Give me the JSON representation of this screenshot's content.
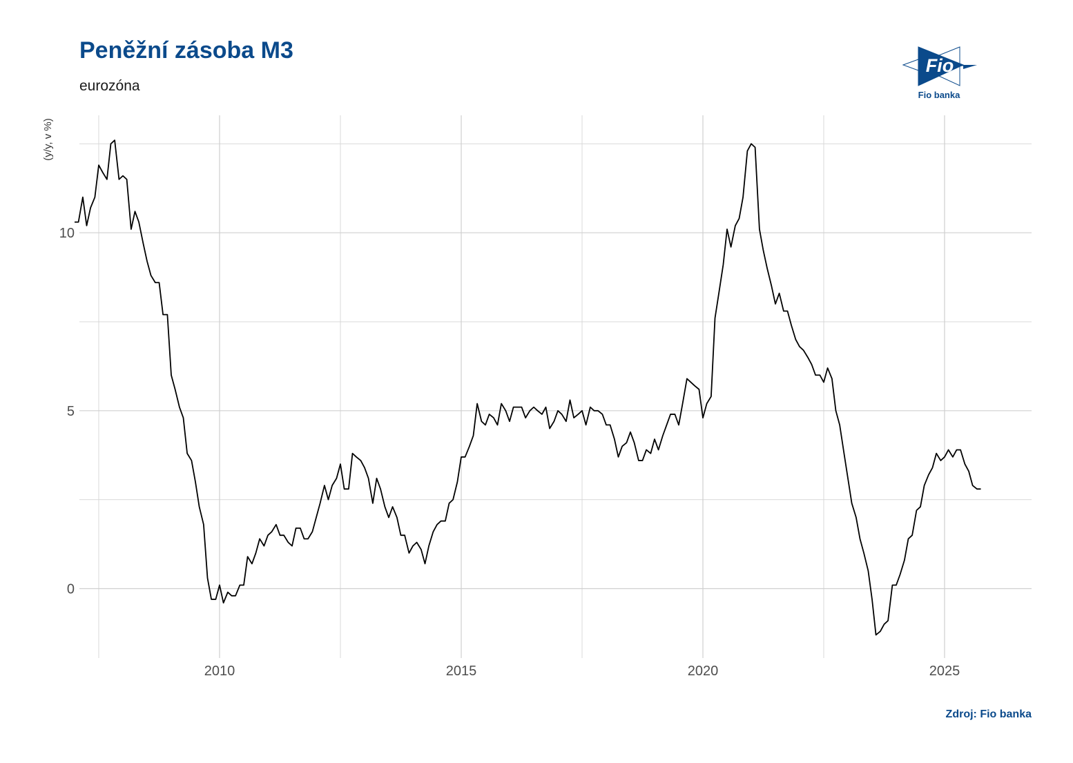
{
  "header": {
    "title": "Peněžní zásoba M3",
    "subtitle": "eurozóna"
  },
  "logo": {
    "icon": "fio-banka-logo",
    "mark_text": "Fio",
    "caption": "Fio banka",
    "color": "#0b4a8b"
  },
  "footer": {
    "source": "Zdroj: Fio banka"
  },
  "chart_data": {
    "type": "line",
    "title": "Peněžní zásoba M3",
    "subtitle": "eurozóna",
    "xlabel": "",
    "ylabel": "(y/y, v %)",
    "xlim": [
      2007.1,
      2026.8
    ],
    "ylim": [
      -1.95,
      13.3
    ],
    "x_ticks": [
      2010,
      2015,
      2020,
      2025
    ],
    "y_ticks": [
      0,
      5,
      10
    ],
    "grid": true,
    "line_color": "#000000",
    "series": [
      {
        "name": "",
        "points": [
          [
            2007.0,
            10.3
          ],
          [
            2007.08,
            10.3
          ],
          [
            2007.17,
            11.0
          ],
          [
            2007.25,
            10.2
          ],
          [
            2007.33,
            10.7
          ],
          [
            2007.42,
            11.0
          ],
          [
            2007.5,
            11.9
          ],
          [
            2007.58,
            11.7
          ],
          [
            2007.67,
            11.5
          ],
          [
            2007.75,
            12.5
          ],
          [
            2007.83,
            12.6
          ],
          [
            2007.92,
            11.5
          ],
          [
            2008.0,
            11.6
          ],
          [
            2008.08,
            11.5
          ],
          [
            2008.17,
            10.1
          ],
          [
            2008.25,
            10.6
          ],
          [
            2008.33,
            10.3
          ],
          [
            2008.42,
            9.7
          ],
          [
            2008.5,
            9.2
          ],
          [
            2008.58,
            8.8
          ],
          [
            2008.67,
            8.6
          ],
          [
            2008.75,
            8.6
          ],
          [
            2008.83,
            7.7
          ],
          [
            2008.92,
            7.7
          ],
          [
            2009.0,
            6.0
          ],
          [
            2009.08,
            5.6
          ],
          [
            2009.17,
            5.1
          ],
          [
            2009.25,
            4.8
          ],
          [
            2009.33,
            3.8
          ],
          [
            2009.42,
            3.6
          ],
          [
            2009.5,
            3.0
          ],
          [
            2009.58,
            2.3
          ],
          [
            2009.67,
            1.8
          ],
          [
            2009.75,
            0.3
          ],
          [
            2009.83,
            -0.3
          ],
          [
            2009.92,
            -0.3
          ],
          [
            2010.0,
            0.1
          ],
          [
            2010.08,
            -0.4
          ],
          [
            2010.17,
            -0.1
          ],
          [
            2010.25,
            -0.2
          ],
          [
            2010.33,
            -0.2
          ],
          [
            2010.42,
            0.1
          ],
          [
            2010.5,
            0.1
          ],
          [
            2010.58,
            0.9
          ],
          [
            2010.67,
            0.7
          ],
          [
            2010.75,
            1.0
          ],
          [
            2010.83,
            1.4
          ],
          [
            2010.92,
            1.2
          ],
          [
            2011.0,
            1.5
          ],
          [
            2011.08,
            1.6
          ],
          [
            2011.17,
            1.8
          ],
          [
            2011.25,
            1.5
          ],
          [
            2011.33,
            1.5
          ],
          [
            2011.42,
            1.3
          ],
          [
            2011.5,
            1.2
          ],
          [
            2011.58,
            1.7
          ],
          [
            2011.67,
            1.7
          ],
          [
            2011.75,
            1.4
          ],
          [
            2011.83,
            1.4
          ],
          [
            2011.92,
            1.6
          ],
          [
            2012.0,
            2.0
          ],
          [
            2012.08,
            2.4
          ],
          [
            2012.17,
            2.9
          ],
          [
            2012.25,
            2.5
          ],
          [
            2012.33,
            2.9
          ],
          [
            2012.42,
            3.1
          ],
          [
            2012.5,
            3.5
          ],
          [
            2012.58,
            2.8
          ],
          [
            2012.67,
            2.8
          ],
          [
            2012.75,
            3.8
          ],
          [
            2012.83,
            3.7
          ],
          [
            2012.92,
            3.6
          ],
          [
            2013.0,
            3.4
          ],
          [
            2013.08,
            3.1
          ],
          [
            2013.17,
            2.4
          ],
          [
            2013.25,
            3.1
          ],
          [
            2013.33,
            2.8
          ],
          [
            2013.42,
            2.3
          ],
          [
            2013.5,
            2.0
          ],
          [
            2013.58,
            2.3
          ],
          [
            2013.67,
            2.0
          ],
          [
            2013.75,
            1.5
          ],
          [
            2013.83,
            1.5
          ],
          [
            2013.92,
            1.0
          ],
          [
            2014.0,
            1.2
          ],
          [
            2014.08,
            1.3
          ],
          [
            2014.17,
            1.1
          ],
          [
            2014.25,
            0.7
          ],
          [
            2014.33,
            1.2
          ],
          [
            2014.42,
            1.6
          ],
          [
            2014.5,
            1.8
          ],
          [
            2014.58,
            1.9
          ],
          [
            2014.67,
            1.9
          ],
          [
            2014.75,
            2.4
          ],
          [
            2014.83,
            2.5
          ],
          [
            2014.92,
            3.0
          ],
          [
            2015.0,
            3.7
          ],
          [
            2015.08,
            3.7
          ],
          [
            2015.17,
            4.0
          ],
          [
            2015.25,
            4.3
          ],
          [
            2015.33,
            5.2
          ],
          [
            2015.42,
            4.7
          ],
          [
            2015.5,
            4.6
          ],
          [
            2015.58,
            4.9
          ],
          [
            2015.67,
            4.8
          ],
          [
            2015.75,
            4.6
          ],
          [
            2015.83,
            5.2
          ],
          [
            2015.92,
            5.0
          ],
          [
            2016.0,
            4.7
          ],
          [
            2016.08,
            5.1
          ],
          [
            2016.17,
            5.1
          ],
          [
            2016.25,
            5.1
          ],
          [
            2016.33,
            4.8
          ],
          [
            2016.42,
            5.0
          ],
          [
            2016.5,
            5.1
          ],
          [
            2016.58,
            5.0
          ],
          [
            2016.67,
            4.9
          ],
          [
            2016.75,
            5.1
          ],
          [
            2016.83,
            4.5
          ],
          [
            2016.92,
            4.7
          ],
          [
            2017.0,
            5.0
          ],
          [
            2017.08,
            4.9
          ],
          [
            2017.17,
            4.7
          ],
          [
            2017.25,
            5.3
          ],
          [
            2017.33,
            4.8
          ],
          [
            2017.42,
            4.9
          ],
          [
            2017.5,
            5.0
          ],
          [
            2017.58,
            4.6
          ],
          [
            2017.67,
            5.1
          ],
          [
            2017.75,
            5.0
          ],
          [
            2017.83,
            5.0
          ],
          [
            2017.92,
            4.9
          ],
          [
            2018.0,
            4.6
          ],
          [
            2018.08,
            4.6
          ],
          [
            2018.17,
            4.2
          ],
          [
            2018.25,
            3.7
          ],
          [
            2018.33,
            4.0
          ],
          [
            2018.42,
            4.1
          ],
          [
            2018.5,
            4.4
          ],
          [
            2018.58,
            4.1
          ],
          [
            2018.67,
            3.6
          ],
          [
            2018.75,
            3.6
          ],
          [
            2018.83,
            3.9
          ],
          [
            2018.92,
            3.8
          ],
          [
            2019.0,
            4.2
          ],
          [
            2019.08,
            3.9
          ],
          [
            2019.17,
            4.3
          ],
          [
            2019.25,
            4.6
          ],
          [
            2019.33,
            4.9
          ],
          [
            2019.42,
            4.9
          ],
          [
            2019.5,
            4.6
          ],
          [
            2019.58,
            5.2
          ],
          [
            2019.67,
            5.9
          ],
          [
            2019.75,
            5.8
          ],
          [
            2019.83,
            5.7
          ],
          [
            2019.92,
            5.6
          ],
          [
            2020.0,
            4.8
          ],
          [
            2020.08,
            5.2
          ],
          [
            2020.17,
            5.4
          ],
          [
            2020.25,
            7.6
          ],
          [
            2020.33,
            8.3
          ],
          [
            2020.42,
            9.1
          ],
          [
            2020.5,
            10.1
          ],
          [
            2020.58,
            9.6
          ],
          [
            2020.67,
            10.2
          ],
          [
            2020.75,
            10.4
          ],
          [
            2020.83,
            11.0
          ],
          [
            2020.92,
            12.3
          ],
          [
            2021.0,
            12.5
          ],
          [
            2021.08,
            12.4
          ],
          [
            2021.17,
            10.1
          ],
          [
            2021.25,
            9.5
          ],
          [
            2021.33,
            9.0
          ],
          [
            2021.42,
            8.5
          ],
          [
            2021.5,
            8.0
          ],
          [
            2021.58,
            8.3
          ],
          [
            2021.67,
            7.8
          ],
          [
            2021.75,
            7.8
          ],
          [
            2021.83,
            7.4
          ],
          [
            2021.92,
            7.0
          ],
          [
            2022.0,
            6.8
          ],
          [
            2022.08,
            6.7
          ],
          [
            2022.17,
            6.5
          ],
          [
            2022.25,
            6.3
          ],
          [
            2022.33,
            6.0
          ],
          [
            2022.42,
            6.0
          ],
          [
            2022.5,
            5.8
          ],
          [
            2022.58,
            6.2
          ],
          [
            2022.67,
            5.9
          ],
          [
            2022.75,
            5.0
          ],
          [
            2022.83,
            4.6
          ],
          [
            2022.92,
            3.8
          ],
          [
            2023.0,
            3.1
          ],
          [
            2023.08,
            2.4
          ],
          [
            2023.17,
            2.0
          ],
          [
            2023.25,
            1.4
          ],
          [
            2023.33,
            1.0
          ],
          [
            2023.42,
            0.5
          ],
          [
            2023.5,
            -0.3
          ],
          [
            2023.58,
            -1.3
          ],
          [
            2023.67,
            -1.2
          ],
          [
            2023.75,
            -1.0
          ],
          [
            2023.83,
            -0.9
          ],
          [
            2023.92,
            0.1
          ],
          [
            2024.0,
            0.1
          ],
          [
            2024.08,
            0.4
          ],
          [
            2024.17,
            0.8
          ],
          [
            2024.25,
            1.4
          ],
          [
            2024.33,
            1.5
          ],
          [
            2024.42,
            2.2
          ],
          [
            2024.5,
            2.3
          ],
          [
            2024.58,
            2.9
          ],
          [
            2024.67,
            3.2
          ],
          [
            2024.75,
            3.4
          ],
          [
            2024.83,
            3.8
          ],
          [
            2024.92,
            3.6
          ],
          [
            2025.0,
            3.7
          ],
          [
            2025.08,
            3.9
          ],
          [
            2025.17,
            3.7
          ],
          [
            2025.25,
            3.9
          ],
          [
            2025.33,
            3.9
          ],
          [
            2025.42,
            3.5
          ],
          [
            2025.5,
            3.3
          ],
          [
            2025.58,
            2.9
          ],
          [
            2025.67,
            2.8
          ],
          [
            2025.75,
            2.8
          ]
        ]
      }
    ]
  }
}
